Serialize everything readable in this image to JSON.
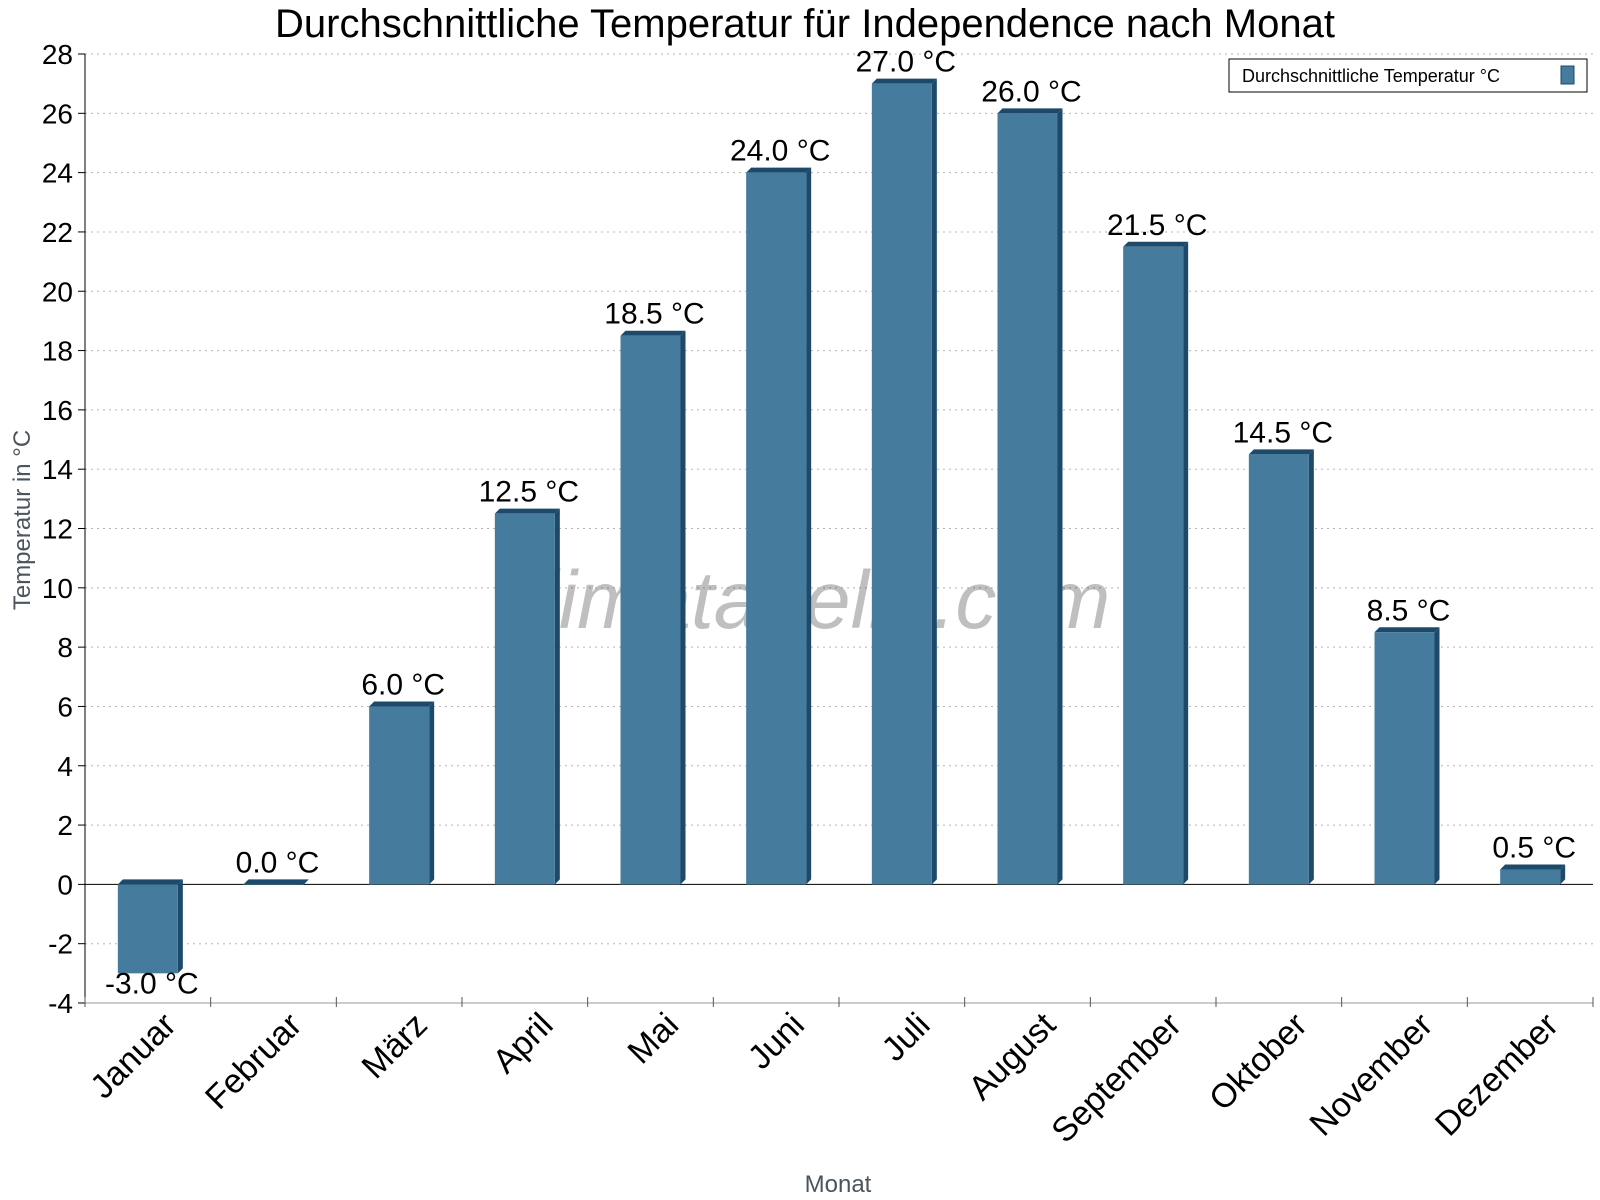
{
  "chart_data": {
    "type": "bar",
    "title": "Durchschnittliche Temperatur für Independence nach Monat",
    "xlabel": "Monat",
    "ylabel": "Temperatur in °C",
    "categories": [
      "Januar",
      "Februar",
      "März",
      "April",
      "Mai",
      "Juni",
      "Juli",
      "August",
      "September",
      "Oktober",
      "November",
      "Dezember"
    ],
    "series": [
      {
        "name": "Durchschnittliche Temperatur °C",
        "values": [
          -3.0,
          0.0,
          6.0,
          12.5,
          18.5,
          24.0,
          27.0,
          26.0,
          21.5,
          14.5,
          8.5,
          0.5
        ],
        "labels": [
          "-3.0 °C",
          "0.0 °C",
          "6.0 °C",
          "12.5 °C",
          "18.5 °C",
          "24.0 °C",
          "27.0 °C",
          "26.0 °C",
          "21.5 °C",
          "14.5 °C",
          "8.5 °C",
          "0.5 °C"
        ],
        "color": "#457b9d",
        "edge_color": "#1d4a6b"
      }
    ],
    "ylim": [
      -4,
      28
    ],
    "yticks": [
      "-4",
      "-2",
      "0",
      "2",
      "4",
      "6",
      "8",
      "10",
      "12",
      "14",
      "16",
      "18",
      "20",
      "22",
      "24",
      "26",
      "28"
    ],
    "grid": true,
    "legend_position": "top-right"
  },
  "watermark": "klimatabelle.com"
}
